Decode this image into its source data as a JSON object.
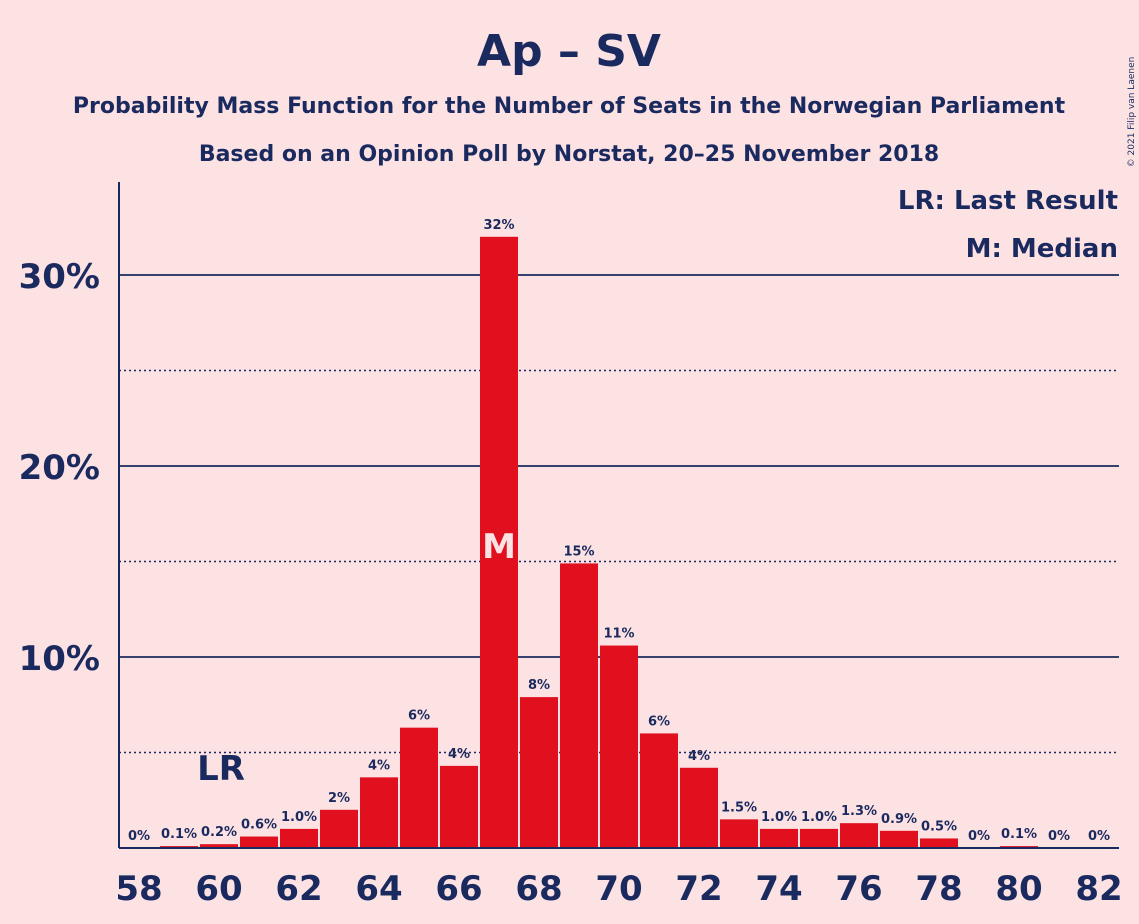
{
  "title": "Ap – SV",
  "subtitle1": "Probability Mass Function for the Number of Seats in the Norwegian Parliament",
  "subtitle2": "Based on an Opinion Poll by Norstat, 20–25 November 2018",
  "copyright": "© 2021 Filip van Laenen",
  "legend": {
    "lr": "LR: Last Result",
    "median": "M: Median"
  },
  "colors": {
    "bar": "#e0101f",
    "text": "#1a2a5e",
    "background": "#fde2e4"
  },
  "chart_data": {
    "type": "bar",
    "x": [
      58,
      59,
      60,
      61,
      62,
      63,
      64,
      65,
      66,
      67,
      68,
      69,
      70,
      71,
      72,
      73,
      74,
      75,
      76,
      77,
      78,
      79,
      80,
      81,
      82
    ],
    "values": [
      0,
      0.1,
      0.2,
      0.6,
      1.0,
      2,
      3.7,
      6.3,
      4.3,
      32,
      7.9,
      14.9,
      10.6,
      6.0,
      4.2,
      1.5,
      1.0,
      1.0,
      1.3,
      0.9,
      0.5,
      0,
      0.1,
      0,
      0
    ],
    "labels": [
      "0%",
      "0.1%",
      "0.2%",
      "0.6%",
      "1.0%",
      "2%",
      "4%",
      "6%",
      "4%",
      "32%",
      "8%",
      "15%",
      "11%",
      "6%",
      "4%",
      "1.5%",
      "1.0%",
      "1.0%",
      "1.3%",
      "0.9%",
      "0.5%",
      "0%",
      "0.1%",
      "0%",
      "0%"
    ],
    "xticks": [
      58,
      60,
      62,
      64,
      66,
      68,
      70,
      72,
      74,
      76,
      78,
      80,
      82
    ],
    "yticks": [
      {
        "value": 10,
        "label": "10%"
      },
      {
        "value": 20,
        "label": "20%"
      },
      {
        "value": 30,
        "label": "30%"
      }
    ],
    "ylim": [
      0,
      35
    ],
    "last_result": 60,
    "last_result_label": "LR",
    "median": 67,
    "median_label": "M",
    "legend_position": "top-right"
  }
}
